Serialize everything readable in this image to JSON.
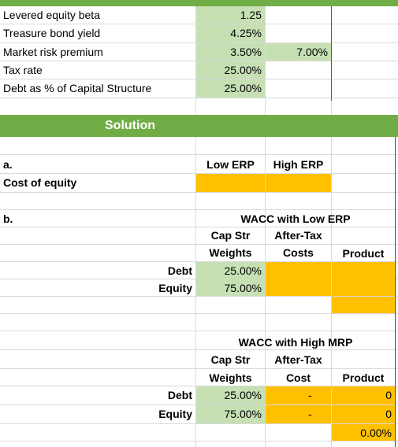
{
  "colors": {
    "green_fill": "#c6e0b4",
    "yellow_fill": "#ffc000",
    "header_band": "#70ad47"
  },
  "inputs": [
    {
      "label": "Levered equity beta",
      "value": "1.25"
    },
    {
      "label": "Treasure bond yield",
      "value": "4.25%"
    },
    {
      "label": "Market risk premium",
      "value": "3.50%",
      "value2": "7.00%"
    },
    {
      "label": "Tax rate",
      "value": "25.00%"
    },
    {
      "label": "Debt as % of Capital Structure",
      "value": "25.00%"
    }
  ],
  "solution": {
    "title": "Solution"
  },
  "part_a": {
    "label": "a.",
    "row_label": "Cost of equity",
    "col1": "Low ERP",
    "col2": "High ERP"
  },
  "part_b": {
    "label": "b.",
    "low": {
      "title": "WACC with Low ERP",
      "h1a": "Cap Str",
      "h1b": "Weights",
      "h2a": "After-Tax",
      "h2b": "Costs",
      "h3": "Product",
      "rows": [
        {
          "label": "Debt",
          "weight": "25.00%"
        },
        {
          "label": "Equity",
          "weight": "75.00%"
        }
      ]
    },
    "high": {
      "title": "WACC with High MRP",
      "h1a": "Cap Str",
      "h1b": "Weights",
      "h2a": "After-Tax",
      "h2b": "Cost",
      "h3": "Product",
      "rows": [
        {
          "label": "Debt",
          "weight": "25.00%",
          "cost": "-",
          "product": "0"
        },
        {
          "label": "Equity",
          "weight": "75.00%",
          "cost": "-",
          "product": "0"
        }
      ],
      "total": "0.00%"
    }
  }
}
